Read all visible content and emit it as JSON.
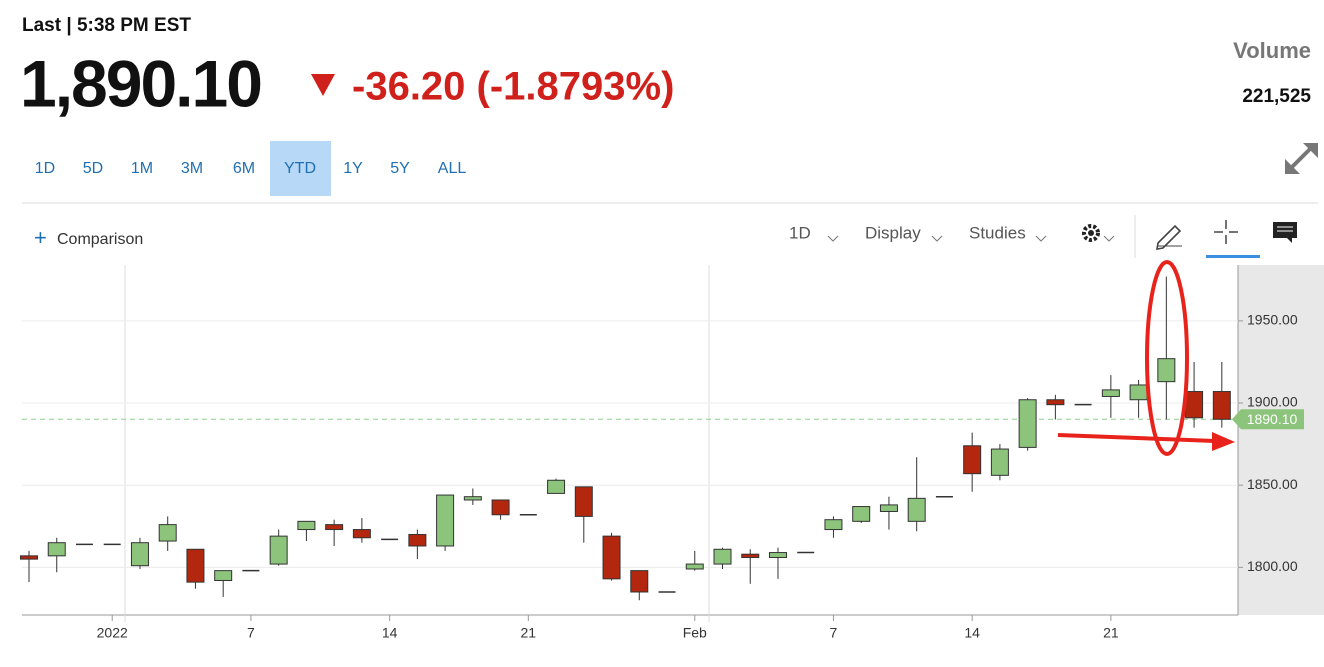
{
  "header": {
    "last_label": "Last | 5:38 PM EST",
    "price": "1,890.10",
    "change": "-36.20 (-1.8793%)",
    "volume_label": "Volume",
    "volume": "221,525"
  },
  "range_buttons": [
    "1D",
    "5D",
    "1M",
    "3M",
    "6M",
    "YTD",
    "1Y",
    "5Y",
    "ALL"
  ],
  "selected_range": "YTD",
  "toolbar": {
    "comparison": "Comparison",
    "interval": "1D",
    "display": "Display",
    "studies": "Studies"
  },
  "chart_data": {
    "type": "candlestick",
    "categories": [
      null,
      null,
      null,
      "2022",
      null,
      null,
      null,
      null,
      "7",
      null,
      null,
      null,
      null,
      "14",
      null,
      null,
      null,
      null,
      "21",
      null,
      null,
      null,
      null,
      null,
      "Feb",
      null,
      null,
      null,
      null,
      "7",
      null,
      null,
      null,
      null,
      "14",
      null,
      null,
      null,
      null,
      "21",
      null,
      null,
      null,
      null
    ],
    "open": [
      1807,
      1807,
      1814,
      1814,
      1801,
      1816,
      1811,
      1792,
      1798,
      1802,
      1823,
      1826,
      1823,
      1817,
      1820,
      1813,
      1841,
      1841,
      1832,
      1845,
      1849,
      1819,
      1798,
      1785,
      1799,
      1802,
      1808,
      1806,
      1809,
      1823,
      1828,
      1834,
      1828,
      1843,
      1874,
      1856,
      1873,
      1902,
      1899,
      1904,
      1902,
      1913,
      1907,
      1907
    ],
    "high": [
      1810,
      1818,
      1814,
      1814,
      1818,
      1831,
      1811,
      1798,
      1798,
      1823,
      1828,
      1829,
      1830,
      1817,
      1823,
      1844,
      1848,
      1841,
      1832,
      1854,
      1849,
      1821,
      1798,
      1785,
      1810,
      1812,
      1811,
      1812,
      1809,
      1831,
      1837,
      1843,
      1867,
      1843,
      1882,
      1875,
      1903,
      1905,
      1899,
      1917,
      1914,
      1977,
      1925,
      1925
    ],
    "low": [
      1791,
      1797,
      1814,
      1814,
      1799,
      1810,
      1787,
      1782,
      1798,
      1801,
      1816,
      1813,
      1815,
      1817,
      1805,
      1810,
      1838,
      1829,
      1832,
      1845,
      1815,
      1792,
      1780,
      1785,
      1798,
      1799,
      1790,
      1793,
      1809,
      1818,
      1827,
      1823,
      1822,
      1843,
      1846,
      1853,
      1871,
      1890,
      1899,
      1891,
      1891,
      1890,
      1885,
      1885
    ],
    "close": [
      1805,
      1815,
      1814,
      1814,
      1815,
      1826,
      1791,
      1798,
      1798,
      1819,
      1828,
      1823,
      1818,
      1817,
      1813,
      1844,
      1843,
      1832,
      1832,
      1853,
      1831,
      1793,
      1785,
      1785,
      1802,
      1811,
      1806,
      1809,
      1809,
      1829,
      1837,
      1838,
      1842,
      1843,
      1857,
      1872,
      1902,
      1899,
      1899,
      1908,
      1911,
      1927,
      1891,
      1890.1
    ],
    "up_color": "#8cc47c",
    "down_color": "#b3270e",
    "last_price": {
      "value": 1890.1,
      "label": "1890.10"
    },
    "ylim": [
      1771,
      1984
    ],
    "yticks": [
      {
        "value": 1800,
        "label": "1800.00"
      },
      {
        "value": 1850,
        "label": "1850.00"
      },
      {
        "value": 1900,
        "label": "1900.00"
      },
      {
        "value": 1950,
        "label": "1950.00"
      }
    ],
    "grid": true
  }
}
